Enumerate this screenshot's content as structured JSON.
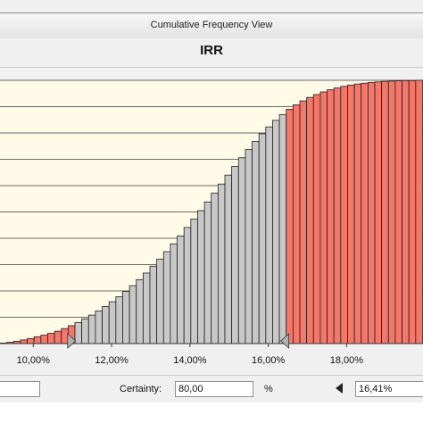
{
  "window": {
    "title": "Cumulative Frequency View",
    "chart_title": "IRR"
  },
  "controls": {
    "left_value": "",
    "certainty_label": "Certainty:",
    "certainty_value": "80,00",
    "percent_label": "%",
    "right_value": "16,41%"
  },
  "colors": {
    "background": "#fffbe6",
    "grid": "#6b6b6b",
    "tail": "#f4776a",
    "mid": "#c8c8c8",
    "bar_edge": "#202020",
    "marker": "#b0b0b0"
  },
  "icons": {
    "left_marker": "triangle-right-icon",
    "right_marker": "triangle-left-icon",
    "certainty_arrow": "triangle-left-icon"
  },
  "chart_data": {
    "type": "bar",
    "title": "IRR",
    "x_ticks": [
      "10,00%",
      "12,00%",
      "14,00%",
      "16,00%",
      "18,00%"
    ],
    "x_tick_values": [
      10,
      12,
      14,
      16,
      18
    ],
    "xlim": [
      9.15,
      19.95
    ],
    "ylim": [
      0,
      1
    ],
    "y_gridlines": [
      0,
      0.1,
      0.2,
      0.3,
      0.4,
      0.5,
      0.6,
      0.7,
      0.8,
      0.9,
      1
    ],
    "grid": true,
    "bin_width": 0.174,
    "certainty_range": [
      10.99,
      16.41
    ],
    "bins_start": [
      9.15,
      9.324,
      9.498,
      9.672,
      9.846,
      10.02,
      10.194,
      10.368,
      10.542,
      10.716,
      10.89,
      11.064,
      11.238,
      11.412,
      11.586,
      11.76,
      11.934,
      12.108,
      12.282,
      12.456,
      12.63,
      12.804,
      12.978,
      13.152,
      13.326,
      13.5,
      13.674,
      13.848,
      14.022,
      14.196,
      14.37,
      14.544,
      14.718,
      14.892,
      15.066,
      15.24,
      15.414,
      15.588,
      15.762,
      15.936,
      16.11,
      16.284,
      16.458,
      16.632,
      16.806,
      16.98,
      17.154,
      17.328,
      17.502,
      17.676,
      17.85,
      18.024,
      18.198,
      18.372,
      18.546,
      18.72,
      18.894,
      19.068,
      19.242,
      19.416,
      19.59,
      19.764
    ],
    "values": [
      0.002,
      0.005,
      0.009,
      0.014,
      0.019,
      0.026,
      0.032,
      0.039,
      0.047,
      0.057,
      0.068,
      0.08,
      0.094,
      0.108,
      0.124,
      0.141,
      0.159,
      0.178,
      0.198,
      0.22,
      0.243,
      0.268,
      0.294,
      0.321,
      0.349,
      0.379,
      0.409,
      0.441,
      0.473,
      0.505,
      0.538,
      0.572,
      0.606,
      0.64,
      0.673,
      0.706,
      0.737,
      0.768,
      0.797,
      0.823,
      0.848,
      0.87,
      0.89,
      0.907,
      0.922,
      0.935,
      0.946,
      0.956,
      0.964,
      0.971,
      0.977,
      0.982,
      0.986,
      0.989,
      0.992,
      0.994,
      0.996,
      0.997,
      0.998,
      0.999,
      0.999,
      1.0
    ]
  }
}
